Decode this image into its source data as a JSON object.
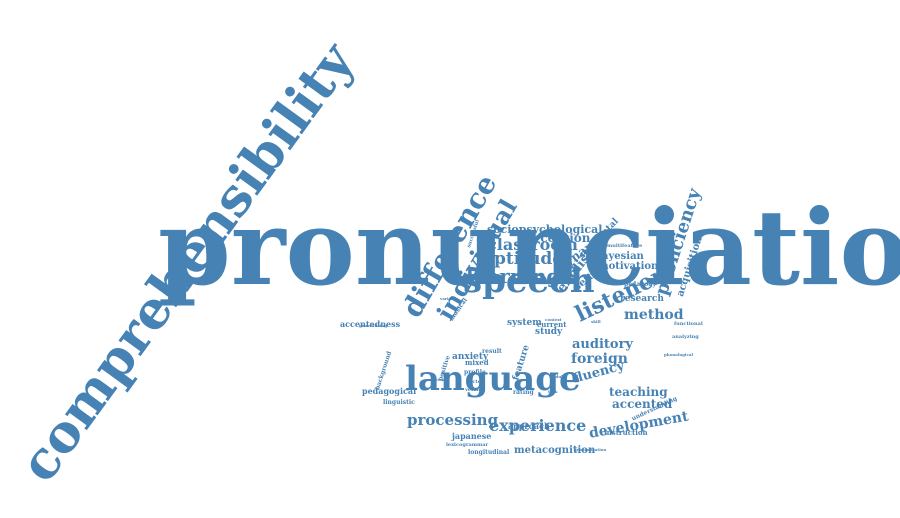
{
  "colors": {
    "primary": "#4682b4",
    "background": "#ffffff"
  },
  "words": [
    {
      "text": "pronunciation",
      "color": "#4682b4"
    },
    {
      "text": "comprehensibility",
      "color": "#4682b4"
    },
    {
      "text": "language",
      "color": "#4682b4"
    },
    {
      "text": "speech",
      "color": "#4682b4"
    },
    {
      "text": "difference",
      "color": "#4682b4"
    },
    {
      "text": "individual",
      "color": "#4682b4"
    },
    {
      "text": "listener",
      "color": "#4682b4"
    },
    {
      "text": "learning",
      "color": "#4682b4"
    },
    {
      "text": "aptitude",
      "color": "#4682b4"
    },
    {
      "text": "classroom",
      "color": "#4682b4"
    },
    {
      "text": "perception",
      "color": "#4682b4"
    },
    {
      "text": "sociopsychological",
      "color": "#4682b4"
    },
    {
      "text": "experience",
      "color": "#4682b4"
    },
    {
      "text": "development",
      "color": "#4682b4"
    },
    {
      "text": "processing",
      "color": "#4682b4"
    },
    {
      "text": "teaching",
      "color": "#4682b4"
    },
    {
      "text": "accented",
      "color": "#4682b4"
    },
    {
      "text": "fluency",
      "color": "#4682b4"
    },
    {
      "text": "foreign",
      "color": "#4682b4"
    },
    {
      "text": "auditory",
      "color": "#4682b4"
    },
    {
      "text": "method",
      "color": "#4682b4"
    },
    {
      "text": "proficiency",
      "color": "#4682b4"
    },
    {
      "text": "acquisition",
      "color": "#4682b4"
    },
    {
      "text": "english",
      "color": "#4682b4"
    },
    {
      "text": "dynamic",
      "color": "#4682b4"
    },
    {
      "text": "segmental",
      "color": "#4682b4"
    },
    {
      "text": "setting",
      "color": "#4682b4"
    },
    {
      "text": "motivation",
      "color": "#4682b4"
    },
    {
      "text": "bayesian",
      "color": "#4682b4"
    },
    {
      "text": "research",
      "color": "#4682b4"
    },
    {
      "text": "pedagogy",
      "color": "#4682b4"
    },
    {
      "text": "metacognition",
      "color": "#4682b4"
    },
    {
      "text": "approach",
      "color": "#4682b4"
    },
    {
      "text": "japanese",
      "color": "#4682b4"
    },
    {
      "text": "accentedness",
      "color": "#4682b4"
    },
    {
      "text": "pedagogical",
      "color": "#4682b4"
    },
    {
      "text": "anxiety",
      "color": "#4682b4"
    },
    {
      "text": "study",
      "color": "#4682b4"
    },
    {
      "text": "system",
      "color": "#4682b4"
    },
    {
      "text": "current",
      "color": "#4682b4"
    },
    {
      "text": "instruction",
      "color": "#4682b4"
    },
    {
      "text": "understanding",
      "color": "#4682b4"
    },
    {
      "text": "longitudinal",
      "color": "#4682b4"
    },
    {
      "text": "lexicogrammar",
      "color": "#4682b4"
    },
    {
      "text": "linguistic",
      "color": "#4682b4"
    },
    {
      "text": "background",
      "color": "#4682b4"
    },
    {
      "text": "mixed",
      "color": "#4682b4"
    },
    {
      "text": "profile",
      "color": "#4682b4"
    },
    {
      "text": "factor",
      "color": "#4682b4"
    },
    {
      "text": "version",
      "color": "#4682b4"
    },
    {
      "text": "rating",
      "color": "#4682b4"
    },
    {
      "text": "result",
      "color": "#4682b4"
    },
    {
      "text": "feature",
      "color": "#4682b4"
    },
    {
      "text": "generalization",
      "color": "#4682b4"
    },
    {
      "text": "analyzing",
      "color": "#4682b4"
    },
    {
      "text": "functional",
      "color": "#4682b4"
    },
    {
      "text": "multifeature",
      "color": "#4682b4"
    },
    {
      "text": "successful",
      "color": "#4682b4"
    },
    {
      "text": "positive",
      "color": "#4682b4"
    },
    {
      "text": "musical",
      "color": "#4682b4"
    },
    {
      "text": "generalizing",
      "color": "#4682b4"
    },
    {
      "text": "phonological",
      "color": "#4682b4"
    },
    {
      "text": "variable",
      "color": "#4682b4"
    },
    {
      "text": "context",
      "color": "#4682b4"
    },
    {
      "text": "skill",
      "color": "#4682b4"
    },
    {
      "text": "adult",
      "color": "#4682b4"
    },
    {
      "text": "native",
      "color": "#4682b4"
    },
    {
      "text": "task",
      "color": "#4682b4"
    }
  ]
}
